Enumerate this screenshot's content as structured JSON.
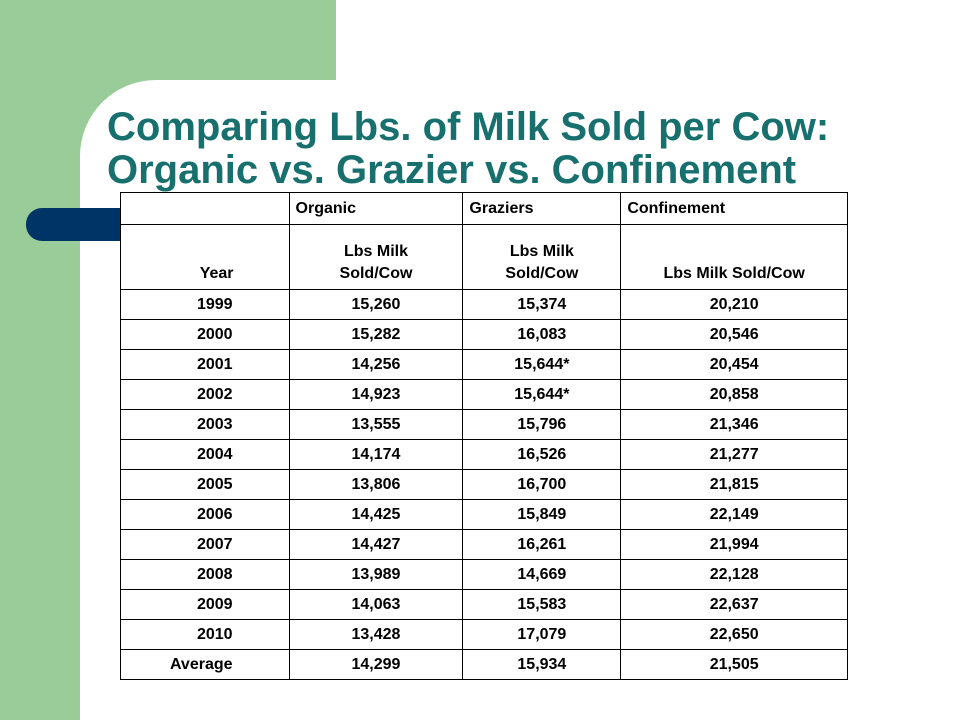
{
  "slide": {
    "title_line1": "Comparing Lbs. of Milk Sold per Cow:",
    "title_line2": "Organic vs. Grazier vs. Confinement"
  },
  "table": {
    "group_headers": [
      "",
      "Organic",
      "Graziers",
      "Confinement"
    ],
    "unit_headers": [
      "Year",
      "Lbs Milk Sold/Cow",
      "Lbs Milk Sold/Cow",
      "Lbs Milk Sold/Cow"
    ],
    "rows": [
      [
        "1999",
        "15,260",
        "15,374",
        "20,210"
      ],
      [
        "2000",
        "15,282",
        "16,083",
        "20,546"
      ],
      [
        "2001",
        "14,256",
        "15,644*",
        "20,454"
      ],
      [
        "2002",
        "14,923",
        "15,644*",
        "20,858"
      ],
      [
        "2003",
        "13,555",
        "15,796",
        "21,346"
      ],
      [
        "2004",
        "14,174",
        "16,526",
        "21,277"
      ],
      [
        "2005",
        "13,806",
        "16,700",
        "21,815"
      ],
      [
        "2006",
        "14,425",
        "15,849",
        "22,149"
      ],
      [
        "2007",
        "14,427",
        "16,261",
        "21,994"
      ],
      [
        "2008",
        "13,989",
        "14,669",
        "22,128"
      ],
      [
        "2009",
        "14,063",
        "15,583",
        "22,637"
      ],
      [
        "2010",
        "13,428",
        "17,079",
        "22,650"
      ],
      [
        "Average",
        "14,299",
        "15,934",
        "21,505"
      ]
    ]
  },
  "colors": {
    "title": "#17706e",
    "green_accent": "#99cc99",
    "navy_accent": "#003366"
  }
}
